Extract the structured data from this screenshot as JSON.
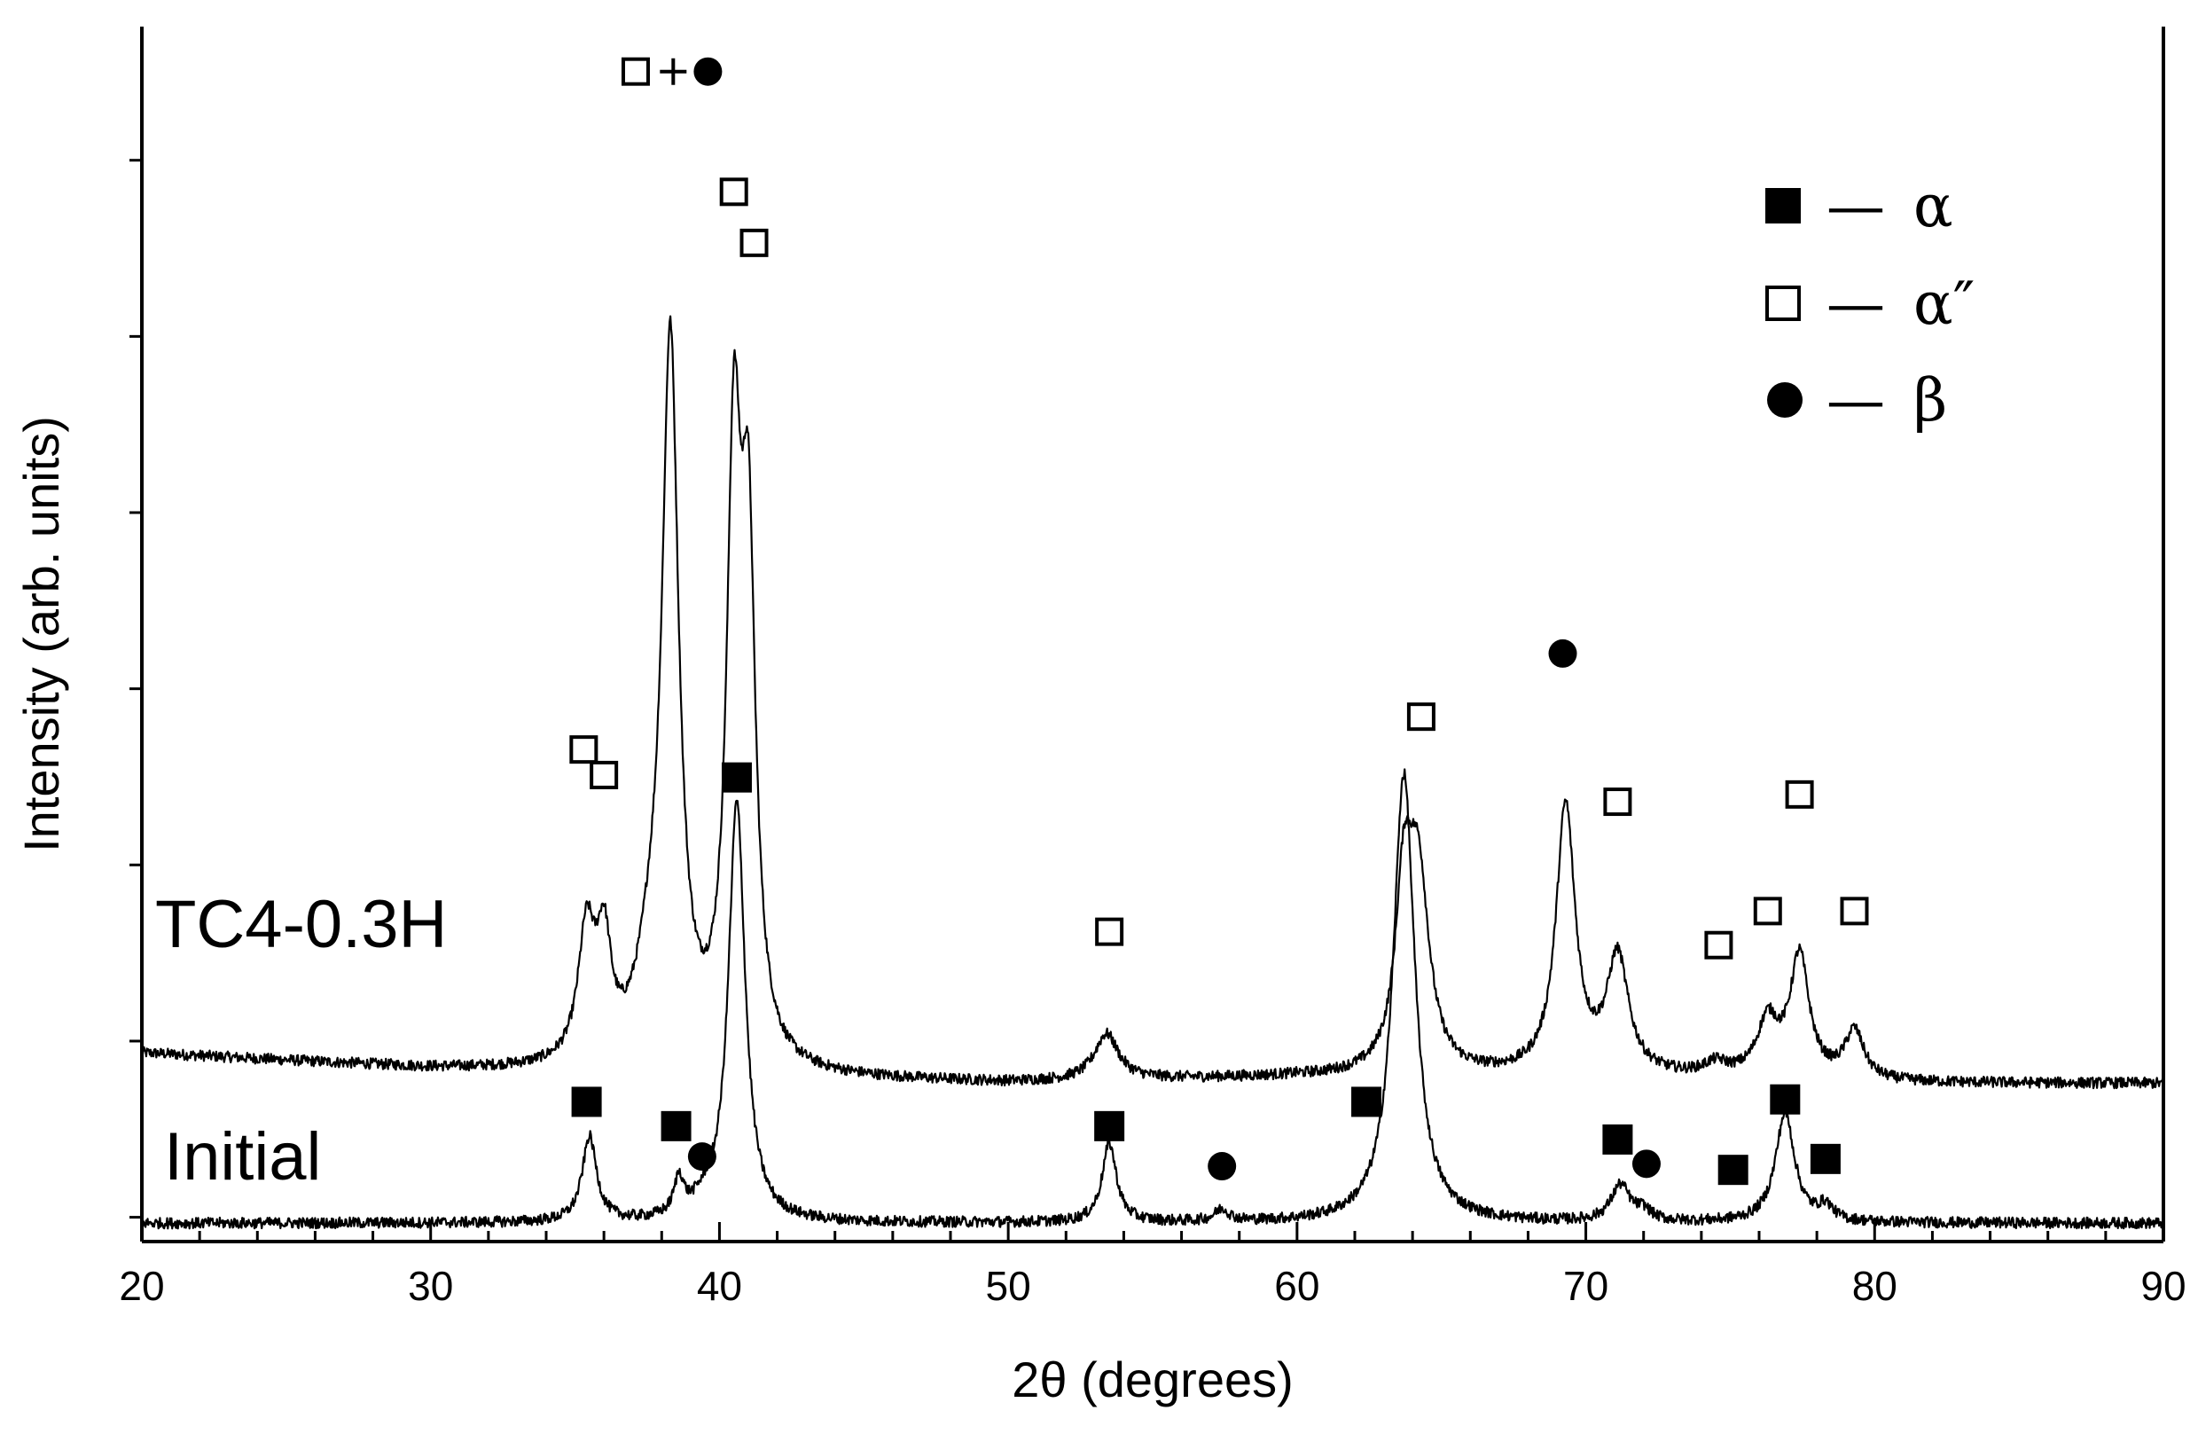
{
  "chart_data": {
    "type": "line",
    "title": "",
    "xlabel": "2θ (degrees)",
    "ylabel": "Intensity (arb. units)",
    "xlim": [
      20,
      90
    ],
    "ylim": [
      0,
      100
    ],
    "x_ticks": [
      20,
      30,
      40,
      50,
      60,
      70,
      80,
      90
    ],
    "y_tick_label_visible": false,
    "grid": false,
    "legend": {
      "placement": "top-right",
      "entries": [
        {
          "symbol": "filled-square",
          "dash": "—",
          "label": "α"
        },
        {
          "symbol": "open-square",
          "dash": "—",
          "label": "α″"
        },
        {
          "symbol": "filled-circle",
          "dash": "—",
          "label": "β"
        }
      ]
    },
    "series": [
      {
        "name": "TC4-0.3H",
        "baseline": [
          [
            20,
            15.5
          ],
          [
            30,
            14.2
          ],
          [
            40,
            13.5
          ],
          [
            50,
            13.0
          ],
          [
            60,
            13.5
          ],
          [
            70,
            13.5
          ],
          [
            80,
            13.0
          ],
          [
            90,
            13.0
          ]
        ],
        "peaks": [
          {
            "x": 35.4,
            "height": 10.5,
            "width": 0.35
          },
          {
            "x": 36.0,
            "height": 9.0,
            "width": 0.3
          },
          {
            "x": 37.6,
            "height": 6.0,
            "width": 0.6
          },
          {
            "x": 38.3,
            "height": 58.0,
            "width": 0.35
          },
          {
            "x": 40.5,
            "height": 47.0,
            "width": 0.3
          },
          {
            "x": 41.0,
            "height": 39.0,
            "width": 0.3
          },
          {
            "x": 53.4,
            "height": 3.8,
            "width": 0.5
          },
          {
            "x": 63.7,
            "height": 13.5,
            "width": 0.35
          },
          {
            "x": 64.2,
            "height": 15.5,
            "width": 0.45
          },
          {
            "x": 69.3,
            "height": 22.0,
            "width": 0.4
          },
          {
            "x": 71.1,
            "height": 9.5,
            "width": 0.45
          },
          {
            "x": 74.5,
            "height": 1.0,
            "width": 0.5
          },
          {
            "x": 76.3,
            "height": 4.5,
            "width": 0.45
          },
          {
            "x": 77.4,
            "height": 10.0,
            "width": 0.4
          },
          {
            "x": 79.3,
            "height": 4.0,
            "width": 0.4
          }
        ]
      },
      {
        "name": "Initial",
        "baseline": [
          [
            20,
            1.5
          ],
          [
            90,
            1.5
          ]
        ],
        "peaks": [
          {
            "x": 35.5,
            "height": 7.0,
            "width": 0.3
          },
          {
            "x": 38.6,
            "height": 3.0,
            "width": 0.2
          },
          {
            "x": 39.5,
            "height": 1.0,
            "width": 0.5
          },
          {
            "x": 40.6,
            "height": 34.5,
            "width": 0.35
          },
          {
            "x": 53.5,
            "height": 6.5,
            "width": 0.3
          },
          {
            "x": 57.4,
            "height": 1.0,
            "width": 0.3
          },
          {
            "x": 63.7,
            "height": 37.0,
            "width": 0.45
          },
          {
            "x": 71.2,
            "height": 3.0,
            "width": 0.4
          },
          {
            "x": 72.0,
            "height": 0.8,
            "width": 0.3
          },
          {
            "x": 76.9,
            "height": 9.0,
            "width": 0.4
          },
          {
            "x": 78.3,
            "height": 1.2,
            "width": 0.3
          }
        ]
      }
    ],
    "markers": [
      {
        "symbol": "filled-square",
        "x": 35.4,
        "y": 11.5
      },
      {
        "symbol": "filled-square",
        "x": 38.5,
        "y": 9.5
      },
      {
        "symbol": "filled-circle",
        "x": 39.4,
        "y": 7.0
      },
      {
        "symbol": "filled-square",
        "x": 40.6,
        "y": 38.2
      },
      {
        "symbol": "filled-square",
        "x": 53.5,
        "y": 9.5
      },
      {
        "symbol": "filled-circle",
        "x": 57.4,
        "y": 6.2
      },
      {
        "symbol": "filled-square",
        "x": 62.4,
        "y": 11.5
      },
      {
        "symbol": "filled-square",
        "x": 71.1,
        "y": 8.4
      },
      {
        "symbol": "filled-circle",
        "x": 72.1,
        "y": 6.4
      },
      {
        "symbol": "filled-square",
        "x": 75.1,
        "y": 5.9
      },
      {
        "symbol": "filled-square",
        "x": 76.9,
        "y": 11.7
      },
      {
        "symbol": "filled-square",
        "x": 78.3,
        "y": 6.8
      },
      {
        "symbol": "open-square",
        "x": 35.3,
        "y": 40.5
      },
      {
        "symbol": "open-square",
        "x": 36.0,
        "y": 38.4
      },
      {
        "symbol": "open-square",
        "x": 37.1,
        "y": 96.3
      },
      {
        "symbol": "plus",
        "x": 38.4,
        "y": 96.3
      },
      {
        "symbol": "filled-circle",
        "x": 39.6,
        "y": 96.3
      },
      {
        "symbol": "open-square",
        "x": 40.5,
        "y": 86.4
      },
      {
        "symbol": "open-square",
        "x": 41.2,
        "y": 82.2
      },
      {
        "symbol": "open-square",
        "x": 53.5,
        "y": 25.5
      },
      {
        "symbol": "open-square",
        "x": 64.3,
        "y": 43.2
      },
      {
        "symbol": "filled-circle",
        "x": 69.2,
        "y": 48.4
      },
      {
        "symbol": "open-square",
        "x": 71.1,
        "y": 36.2
      },
      {
        "symbol": "open-square",
        "x": 74.6,
        "y": 24.4
      },
      {
        "symbol": "open-square",
        "x": 76.3,
        "y": 27.2
      },
      {
        "symbol": "open-square",
        "x": 77.4,
        "y": 36.8
      },
      {
        "symbol": "open-square",
        "x": 79.3,
        "y": 27.2
      }
    ]
  }
}
